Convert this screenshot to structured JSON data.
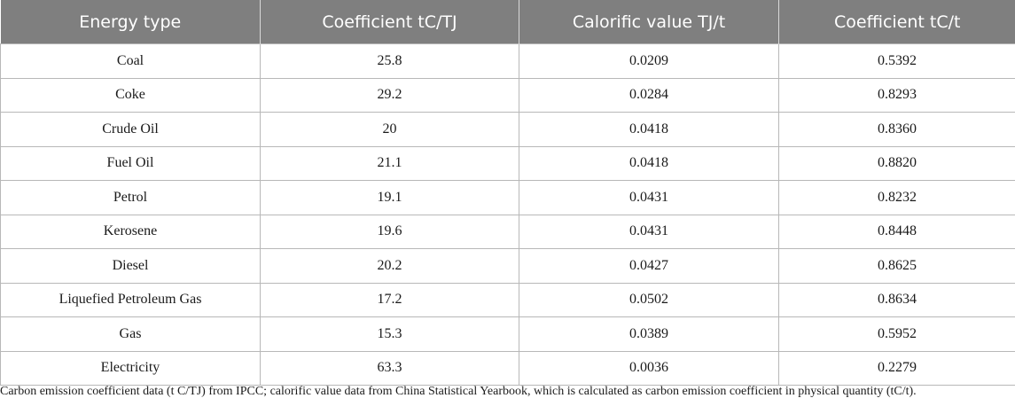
{
  "table": {
    "headers": [
      "Energy type",
      "Coefficient tC/TJ",
      "Calorific value TJ/t",
      "Coefficient tC/t"
    ],
    "rows": [
      [
        "Coal",
        "25.8",
        "0.0209",
        "0.5392"
      ],
      [
        "Coke",
        "29.2",
        "0.0284",
        "0.8293"
      ],
      [
        "Crude Oil",
        "20",
        "0.0418",
        "0.8360"
      ],
      [
        "Fuel Oil",
        "21.1",
        "0.0418",
        "0.8820"
      ],
      [
        "Petrol",
        "19.1",
        "0.0431",
        "0.8232"
      ],
      [
        "Kerosene",
        "19.6",
        "0.0431",
        "0.8448"
      ],
      [
        "Diesel",
        "20.2",
        "0.0427",
        "0.8625"
      ],
      [
        "Liquefied Petroleum Gas",
        "17.2",
        "0.0502",
        "0.8634"
      ],
      [
        "Gas",
        "15.3",
        "0.0389",
        "0.5952"
      ],
      [
        "Electricity",
        "63.3",
        "0.0036",
        "0.2279"
      ]
    ]
  },
  "footnote": "Carbon emission coefficient data (t C/TJ) from IPCC; calorific value data from China Statistical Yearbook, which is calculated as carbon emission coefficient in physical quantity (tC/t)."
}
